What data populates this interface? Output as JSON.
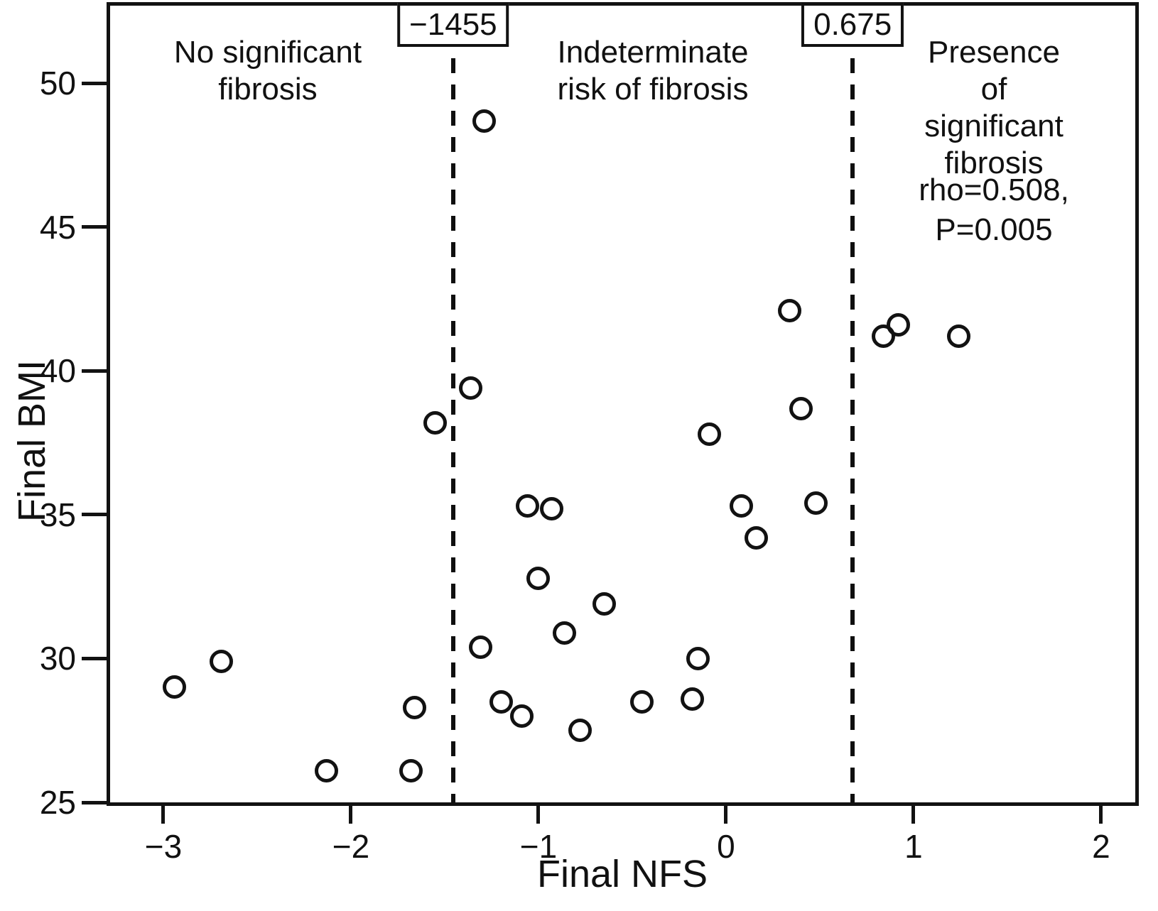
{
  "figure": {
    "background": "#ffffff",
    "ink_color": "#121212",
    "x_axis": {
      "label": "Final NFS",
      "tick_labels": [
        "−3",
        "−2",
        "−1",
        "0",
        "1",
        "2"
      ]
    },
    "y_axis": {
      "label": "Final BMI",
      "tick_labels": [
        "25",
        "30",
        "35",
        "40",
        "45",
        "50"
      ]
    },
    "thresholds": [
      {
        "label": "−1455"
      },
      {
        "label": "0.675"
      }
    ],
    "regions": [
      {
        "label": "No significant\nfibrosis"
      },
      {
        "label": "Indeterminate\nrisk of fibrosis"
      },
      {
        "label": "Presence of\nsignificant\nfibrosis"
      }
    ],
    "annotation": "rho=0.508,\nP=0.005"
  },
  "chart_data": {
    "type": "scatter",
    "title": "",
    "xlabel": "Final NFS",
    "ylabel": "Final BMI",
    "xlim": [
      -3.284,
      2.182
    ],
    "ylim": [
      25,
      52.7
    ],
    "x_ticks": [
      -3,
      -2,
      -1,
      0,
      1,
      2
    ],
    "y_ticks": [
      25,
      30,
      35,
      40,
      45,
      50
    ],
    "grid": false,
    "legend": "none",
    "marker": "open-circle",
    "vlines": [
      {
        "x": -1.455,
        "label": "−1455",
        "style": "dashed"
      },
      {
        "x": 0.675,
        "label": "0.675",
        "style": "dashed"
      }
    ],
    "region_labels": [
      {
        "text": "No significant fibrosis",
        "x_center": -2.45
      },
      {
        "text": "Indeterminate risk of fibrosis",
        "x_center": -0.39
      },
      {
        "text": "Presence of significant fibrosis",
        "x_center": 1.43
      }
    ],
    "stats_annotation": "rho=0.508, P=0.005",
    "points": [
      [
        -2.94,
        29.0
      ],
      [
        -2.69,
        29.9
      ],
      [
        -2.13,
        26.1
      ],
      [
        -1.68,
        26.1
      ],
      [
        -1.66,
        28.3
      ],
      [
        -1.55,
        38.2
      ],
      [
        -1.36,
        39.4
      ],
      [
        -1.31,
        30.4
      ],
      [
        -1.29,
        48.7
      ],
      [
        -1.2,
        28.5
      ],
      [
        -1.09,
        28.0
      ],
      [
        -1.06,
        35.3
      ],
      [
        -1.0,
        32.8
      ],
      [
        -0.93,
        35.2
      ],
      [
        -0.86,
        30.9
      ],
      [
        -0.78,
        27.5
      ],
      [
        -0.65,
        31.9
      ],
      [
        -0.45,
        28.5
      ],
      [
        -0.18,
        28.6
      ],
      [
        -0.15,
        30.0
      ],
      [
        -0.09,
        37.8
      ],
      [
        0.08,
        35.3
      ],
      [
        0.16,
        34.2
      ],
      [
        0.34,
        42.1
      ],
      [
        0.4,
        38.7
      ],
      [
        0.48,
        35.4
      ],
      [
        0.84,
        41.2
      ],
      [
        0.92,
        41.6
      ],
      [
        1.24,
        41.2
      ]
    ]
  }
}
